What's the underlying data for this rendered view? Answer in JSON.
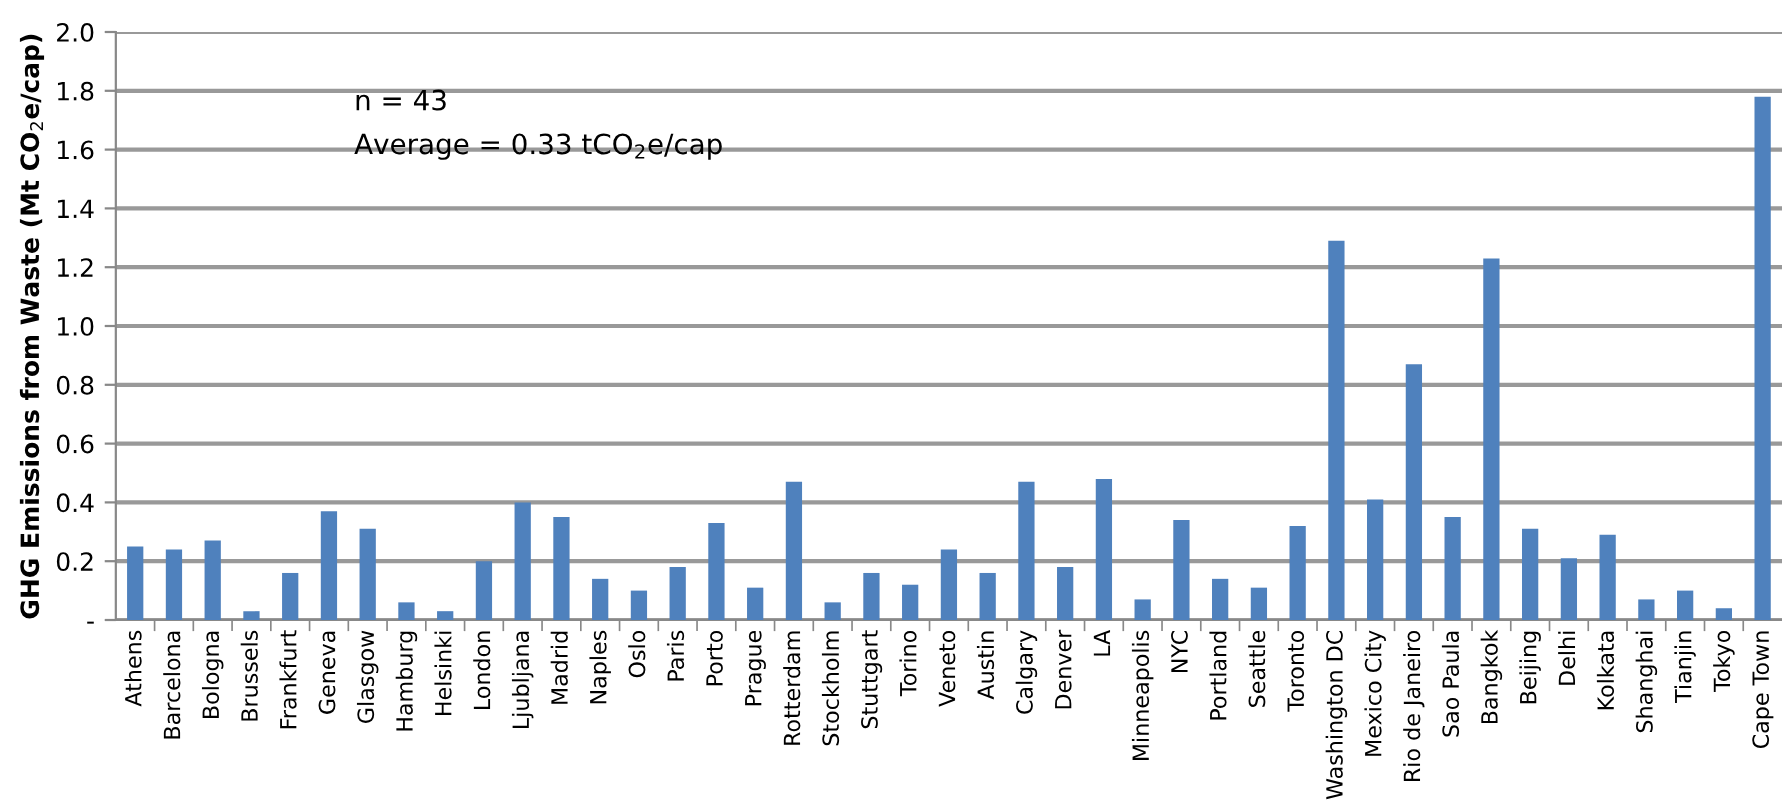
{
  "chart_data": {
    "type": "bar",
    "ylabel": "GHG Emissions from Waste (Mt CO$_{2}$e/cap)",
    "annotations": [
      "n = 43",
      "Average = 0.33 tCO$_{2}$e/cap"
    ],
    "categories": [
      "Athens",
      "Barcelona",
      "Bologna",
      "Brussels",
      "Frankfurt",
      "Geneva",
      "Glasgow",
      "Hamburg",
      "Helsinki",
      "London",
      "Ljubljana",
      "Madrid",
      "Naples",
      "Oslo",
      "Paris",
      "Porto",
      "Prague",
      "Rotterdam",
      "Stockholm",
      "Stuttgart",
      "Torino",
      "Veneto",
      "Austin",
      "Calgary",
      "Denver",
      "LA",
      "Minneapolis",
      "NYC",
      "Portland",
      "Seattle",
      "Toronto",
      "Washington DC",
      "Mexico City",
      "Rio de Janeiro",
      "Sao Paula",
      "Bangkok",
      "Beijing",
      "Delhi",
      "Kolkata",
      "Shanghai",
      "Tianjin",
      "Tokyo",
      "Cape Town"
    ],
    "values": [
      0.25,
      0.24,
      0.27,
      0.03,
      0.16,
      0.37,
      0.31,
      0.06,
      0.03,
      0.2,
      0.4,
      0.35,
      0.14,
      0.1,
      0.18,
      0.33,
      0.11,
      0.47,
      0.06,
      0.16,
      0.12,
      0.24,
      0.16,
      0.47,
      0.18,
      0.48,
      0.07,
      0.34,
      0.14,
      0.11,
      0.32,
      1.29,
      0.41,
      0.87,
      0.35,
      1.23,
      0.31,
      0.21,
      0.29,
      0.07,
      0.1,
      0.04,
      1.78
    ],
    "color": "#4f81bd",
    "ylim": [
      0,
      2.0
    ],
    "yticks": [
      {
        "value": 0,
        "label": "-"
      },
      0.2,
      0.4,
      0.6,
      0.8,
      {
        "value": 1.0,
        "label": "1.0"
      },
      1.2,
      1.4,
      1.6,
      1.8,
      {
        "value": 2.0,
        "label": "2.0"
      }
    ],
    "grid": "y"
  }
}
